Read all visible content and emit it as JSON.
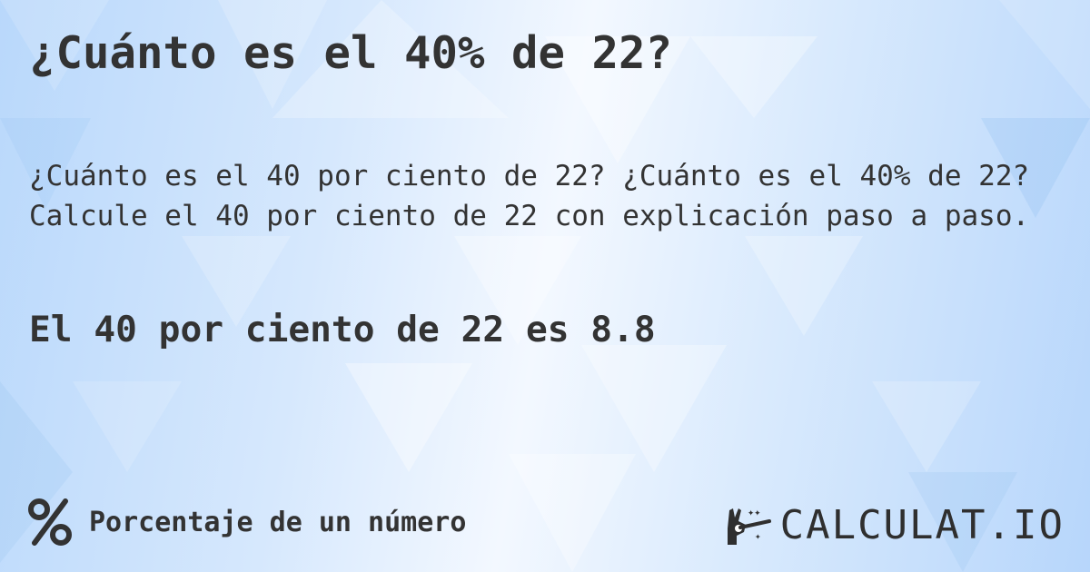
{
  "title": "¿Cuánto es el 40% de 22?",
  "description": [
    "¿Cuánto es el 40 por ciento de 22? ¿Cuánto es el 40% de 22?",
    "Calcule el 40 por ciento de 22 con explicación paso a paso."
  ],
  "result": "El 40 por ciento de 22 es 8.8",
  "footer": {
    "icon": "percent-icon",
    "label": "Porcentaje de un número"
  },
  "logo": {
    "text": "CALCULAT.IO",
    "icon": "magic-hand-icon"
  },
  "colors": {
    "text": "#333333",
    "background": "#cfe4fc"
  }
}
